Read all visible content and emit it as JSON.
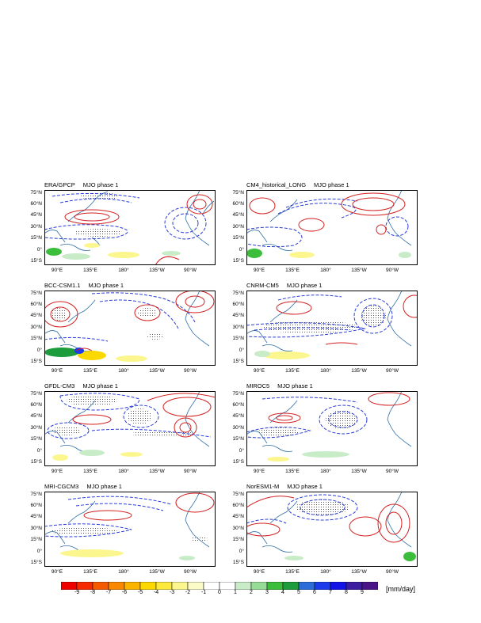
{
  "panels": [
    {
      "dataset": "ERA/GPCP",
      "phase": "MJO phase 1"
    },
    {
      "dataset": "CM4_historical_LONG",
      "phase": "MJO phase 1"
    },
    {
      "dataset": "BCC-CSM1.1",
      "phase": "MJO phase 1"
    },
    {
      "dataset": "CNRM-CM5",
      "phase": "MJO phase 1"
    },
    {
      "dataset": "GFDL-CM3",
      "phase": "MJO phase 1"
    },
    {
      "dataset": "MIROC5",
      "phase": "MJO phase 1"
    },
    {
      "dataset": "MRI-CGCM3",
      "phase": "MJO phase 1"
    },
    {
      "dataset": "NorESM1-M",
      "phase": "MJO phase 1"
    }
  ],
  "lat_labels": [
    "75°N",
    "60°N",
    "45°N",
    "30°N",
    "15°N",
    "0°",
    "15°S"
  ],
  "lon_labels": [
    "90°E",
    "135°E",
    "180°",
    "135°W",
    "90°W"
  ],
  "colorbar": {
    "ticks": [
      "-9",
      "-8",
      "-7",
      "-6",
      "-5",
      "-4",
      "-3",
      "-2",
      "-1",
      "0",
      "1",
      "2",
      "3",
      "4",
      "5",
      "6",
      "7",
      "8",
      "9"
    ],
    "colors": [
      "#ee0000",
      "#f52a00",
      "#f55a00",
      "#f98800",
      "#fbb400",
      "#fbd800",
      "#fbea3c",
      "#fbf68e",
      "#fbfbc8",
      "#ffffff",
      "#ffffff",
      "#c8ecc8",
      "#96dc96",
      "#3cbe3c",
      "#1c9c3c",
      "#2c6cd8",
      "#1c3cec",
      "#1414e6",
      "#3c1ca0",
      "#4a1486"
    ],
    "units": "[mm/day]"
  },
  "colors": {
    "positive_contour": "#d42020",
    "negative_contour": "#2a3cd6",
    "coastline": "#2f6ea6"
  }
}
